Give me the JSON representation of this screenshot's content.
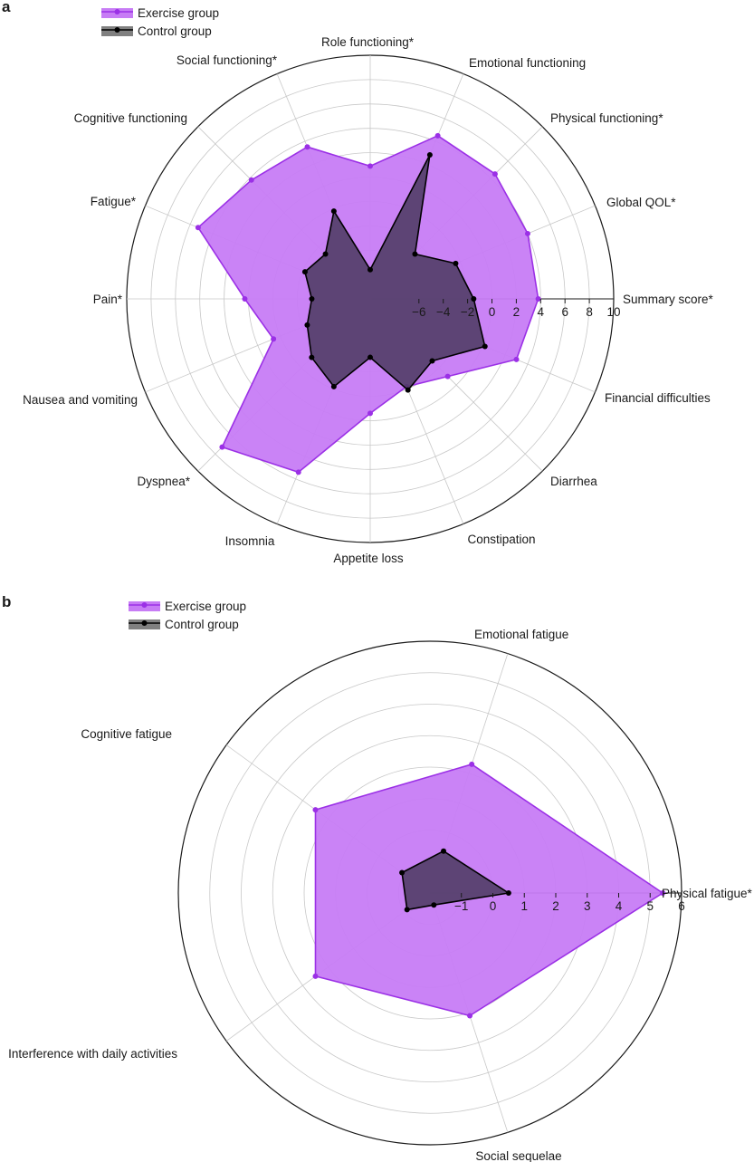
{
  "panels": {
    "a_label": "a",
    "b_label": "b"
  },
  "colors": {
    "exercise_line": "#9b30e6",
    "exercise_fill": "#c77cf5",
    "control_line": "#000000",
    "control_fill": "#4a3a5e",
    "grid": "#c8c8c8",
    "outer_ring": "#1a1a1a"
  },
  "chart_data": [
    {
      "type": "radar",
      "panel": "a",
      "legend": {
        "placement": "top-left",
        "entries": [
          "Exercise group",
          "Control group"
        ]
      },
      "rlim": [
        -10,
        10
      ],
      "ring_values": [
        -8,
        -6,
        -4,
        -2,
        0,
        2,
        4,
        6,
        8,
        10
      ],
      "tick_labels": [
        "−6",
        "−4",
        "−2",
        "0",
        "2",
        "4",
        "6",
        "8",
        "10"
      ],
      "tick_values": [
        -6,
        -4,
        -2,
        0,
        2,
        4,
        6,
        8,
        10
      ],
      "categories": [
        "Summary score*",
        "Global QOL*",
        "Physical functioning*",
        "Emotional functioning",
        "Role functioning*",
        "Social functioning*",
        "Cognitive functioning",
        "Fatigue*",
        "Pain*",
        "Nausea and vomiting",
        "Dyspnea*",
        "Insomnia",
        "Appetite loss",
        "Constipation",
        "Diarrhea",
        "Financial difficulties"
      ],
      "series": [
        {
          "name": "Exercise group",
          "values": [
            3.8,
            4,
            4.5,
            4.5,
            0.9,
            3.5,
            3.8,
            5.3,
            0.3,
            -1.4,
            7.2,
            5.4,
            -0.6,
            -2.2,
            -1,
            3
          ]
        },
        {
          "name": "Control group",
          "values": [
            -1.5,
            -2.4,
            -4.8,
            2.8,
            -7.6,
            -2.2,
            -4.8,
            -4.2,
            -5.2,
            -4.4,
            -3.2,
            -2.2,
            -5.2,
            -1.9,
            -2.8,
            0.2
          ]
        }
      ],
      "grid": true
    },
    {
      "type": "radar",
      "panel": "b",
      "legend": {
        "placement": "top-left",
        "entries": [
          "Exercise group",
          "Control group"
        ]
      },
      "rlim": [
        -2,
        6
      ],
      "ring_values": [
        -1,
        0,
        1,
        2,
        3,
        4,
        5,
        6
      ],
      "tick_labels": [
        "−1",
        "0",
        "1",
        "2",
        "3",
        "4",
        "5",
        "6"
      ],
      "tick_values": [
        -1,
        0,
        1,
        2,
        3,
        4,
        5,
        6
      ],
      "categories": [
        "Physical fatigue*",
        "Emotional fatigue",
        "Cognitive fatigue",
        "Interference with daily activities",
        "Social sequelae"
      ],
      "series": [
        {
          "name": "Exercise group",
          "values": [
            5.4,
            2.3,
            2.5,
            2.5,
            2.1
          ]
        },
        {
          "name": "Control group",
          "values": [
            0.5,
            -0.6,
            -0.9,
            -1.1,
            -1.6
          ]
        }
      ],
      "grid": true
    }
  ]
}
